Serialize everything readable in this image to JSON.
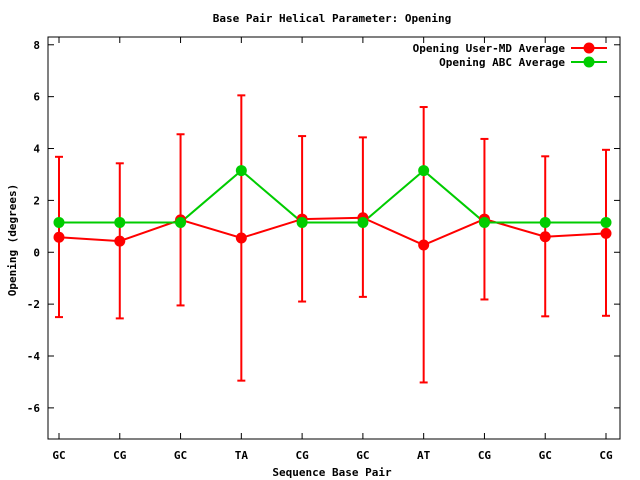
{
  "chart_data": {
    "type": "line",
    "title": "Base Pair Helical Parameter: Opening",
    "xlabel": "Sequence Base Pair",
    "ylabel": "Opening (degrees)",
    "categories": [
      "GC",
      "CG",
      "GC",
      "TA",
      "CG",
      "GC",
      "AT",
      "CG",
      "GC",
      "CG"
    ],
    "ylim": [
      -7.2,
      8.3
    ],
    "yticks": [
      -6,
      -4,
      -2,
      0,
      2,
      4,
      6,
      8
    ],
    "ytick_labels": [
      "-6",
      "-4",
      "-2",
      "0",
      "2",
      "4",
      "6",
      "8"
    ],
    "grid": false,
    "legend_position": "top-right",
    "series": [
      {
        "name": "Opening User-MD Average",
        "color": "#ff0000",
        "values": [
          0.58,
          0.43,
          1.25,
          0.55,
          1.28,
          1.33,
          0.28,
          1.28,
          0.6,
          0.73
        ],
        "error_low": [
          -2.5,
          -2.55,
          -2.05,
          -4.95,
          -1.9,
          -1.72,
          -5.02,
          -1.82,
          -2.47,
          -2.45
        ],
        "error_high": [
          3.68,
          3.43,
          4.55,
          6.05,
          4.48,
          4.43,
          5.6,
          4.37,
          3.7,
          3.95
        ]
      },
      {
        "name": "Opening ABC Average",
        "color": "#00cc00",
        "values": [
          1.15,
          1.15,
          1.15,
          3.15,
          1.15,
          1.15,
          3.15,
          1.15,
          1.15,
          1.15
        ]
      }
    ]
  }
}
